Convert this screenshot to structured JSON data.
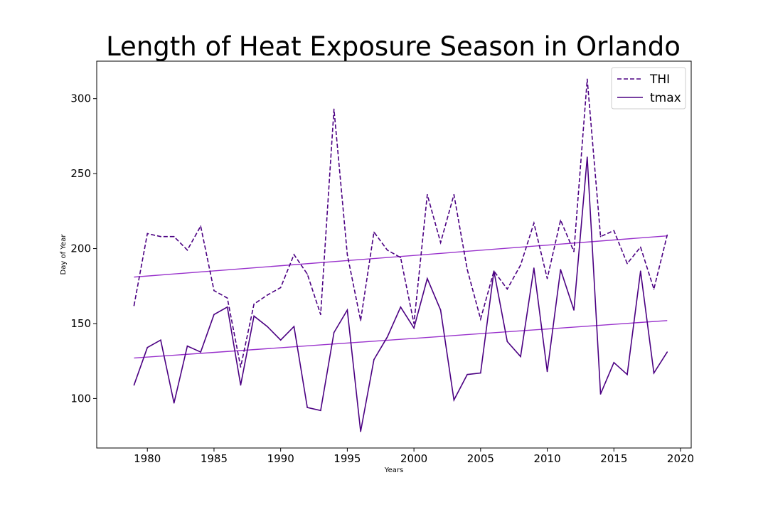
{
  "chart_data": {
    "type": "line",
    "title": "Length of Heat Exposure Season in Orlando",
    "xlabel": "Years",
    "ylabel": "Day of Year",
    "xlim": [
      1976.2,
      2020.8
    ],
    "ylim": [
      67,
      325
    ],
    "xticks": [
      1980,
      1985,
      1990,
      1995,
      2000,
      2005,
      2010,
      2015,
      2020
    ],
    "yticks": [
      100,
      150,
      200,
      250,
      300
    ],
    "grid": false,
    "legend_position": "top-right",
    "x": [
      1979,
      1980,
      1981,
      1982,
      1983,
      1984,
      1985,
      1986,
      1987,
      1988,
      1989,
      1990,
      1991,
      1992,
      1993,
      1994,
      1995,
      1996,
      1997,
      1998,
      1999,
      2000,
      2001,
      2002,
      2003,
      2004,
      2005,
      2006,
      2007,
      2008,
      2009,
      2010,
      2011,
      2012,
      2013,
      2014,
      2015,
      2016,
      2017,
      2018,
      2019
    ],
    "series": [
      {
        "name": "THI",
        "style": "dashed",
        "color": "#4b0082",
        "values": [
          162,
          210,
          208,
          208,
          199,
          215,
          172,
          167,
          121,
          163,
          169,
          174,
          196,
          183,
          156,
          293,
          196,
          152,
          211,
          199,
          194,
          150,
          236,
          204,
          236,
          186,
          153,
          185,
          173,
          189,
          217,
          180,
          219,
          198,
          313,
          208,
          212,
          190,
          201,
          173,
          209
        ]
      },
      {
        "name": "tmax",
        "style": "solid",
        "color": "#4b0082",
        "values": [
          109,
          134,
          139,
          97,
          135,
          131,
          156,
          161,
          109,
          155,
          148,
          139,
          148,
          94,
          92,
          144,
          159,
          78,
          126,
          141,
          161,
          147,
          180,
          159,
          99,
          116,
          117,
          185,
          138,
          128,
          187,
          118,
          186,
          159,
          261,
          103,
          124,
          116,
          185,
          117,
          131
        ]
      }
    ],
    "trendlines": [
      {
        "of": "THI",
        "start": [
          1979,
          181
        ],
        "end": [
          2019,
          208.5
        ],
        "color": "#9932cc"
      },
      {
        "of": "tmax",
        "start": [
          1979,
          127
        ],
        "end": [
          2019,
          152
        ],
        "color": "#9932cc"
      }
    ]
  }
}
